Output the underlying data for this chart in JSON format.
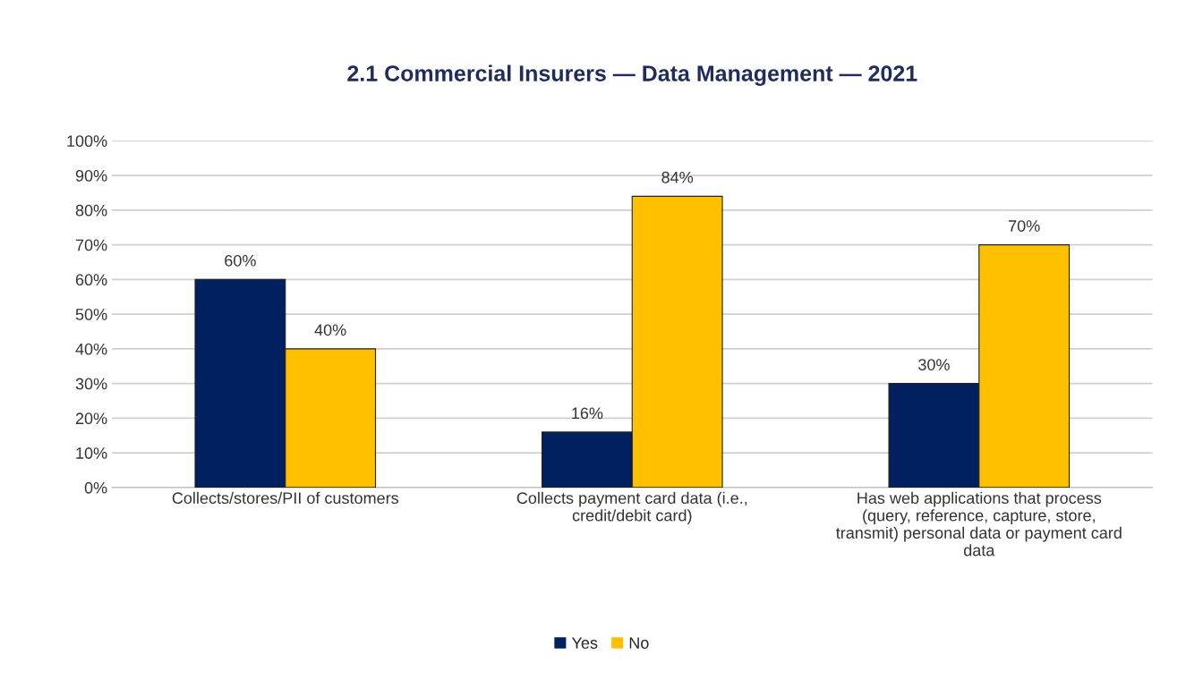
{
  "chart_data": {
    "type": "bar",
    "title": "2.1 Commercial Insurers — Data Management — 2021",
    "categories": [
      "Collects/stores/PII of customers",
      "Collects payment card data (i.e.,\ncredit/debit card)",
      "Has web applications that process\n(query, reference, capture, store,\ntransmit) personal data or payment card\ndata"
    ],
    "series": [
      {
        "name": "Yes",
        "color": "#002060",
        "values": [
          60,
          16,
          30
        ],
        "value_labels": [
          "60%",
          "16%",
          "30%"
        ]
      },
      {
        "name": "No",
        "color": "#ffc000",
        "values": [
          40,
          84,
          70
        ],
        "value_labels": [
          "40%",
          "84%",
          "70%"
        ]
      }
    ],
    "ylim": [
      0,
      100
    ],
    "yticks": [
      {
        "value": 0,
        "label": "0%"
      },
      {
        "value": 10,
        "label": "10%"
      },
      {
        "value": 20,
        "label": "20%"
      },
      {
        "value": 30,
        "label": "30%"
      },
      {
        "value": 40,
        "label": "40%"
      },
      {
        "value": 50,
        "label": "50%"
      },
      {
        "value": 60,
        "label": "60%"
      },
      {
        "value": 70,
        "label": "70%"
      },
      {
        "value": 80,
        "label": "80%"
      },
      {
        "value": 90,
        "label": "90%"
      },
      {
        "value": 100,
        "label": "100%"
      }
    ],
    "grid": "y",
    "legend": "bottom"
  }
}
